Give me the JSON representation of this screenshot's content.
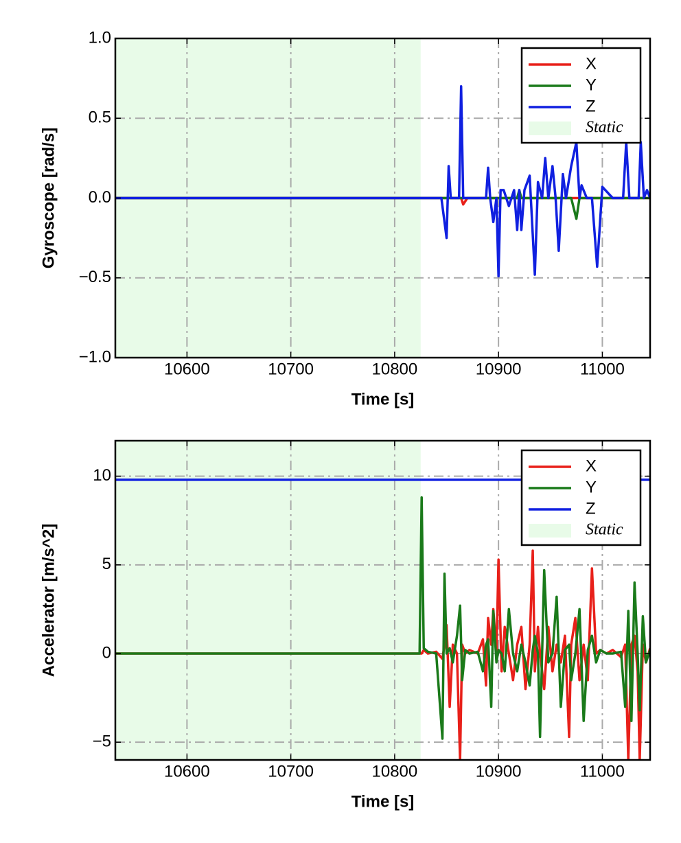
{
  "chart_data": [
    {
      "type": "line",
      "xlabel": "Time [s]",
      "ylabel": "Gyroscope [rad/s]",
      "xlim": [
        10531,
        11046
      ],
      "ylim": [
        -1,
        1
      ],
      "xticks": [
        10600,
        10700,
        10800,
        10900,
        11000
      ],
      "yticks": [
        {
          "value": -1,
          "label": "−1.0"
        },
        {
          "value": -0.5,
          "label": "−0.5"
        },
        {
          "value": 0,
          "label": "0.0"
        },
        0.5,
        {
          "value": 1,
          "label": "1.0"
        }
      ],
      "grid": true,
      "legend": "upper right",
      "shaded_region": {
        "x": [
          10531,
          10825
        ],
        "label": "Static",
        "color": "#e8fbe8"
      },
      "x": [
        10531,
        10600,
        10700,
        10800,
        10845,
        10850,
        10852,
        10854,
        10858,
        10862,
        10864,
        10866,
        10870,
        10880,
        10888,
        10890,
        10892,
        10895,
        10898,
        10900,
        10902,
        10905,
        10910,
        10915,
        10918,
        10920,
        10922,
        10925,
        10930,
        10935,
        10938,
        10942,
        10945,
        10948,
        10952,
        10955,
        10958,
        10962,
        10965,
        10970,
        10975,
        10978,
        10980,
        10985,
        10990,
        10995,
        11000,
        11010,
        11020,
        11023,
        11026,
        11030,
        11035,
        11037,
        11040,
        11043,
        11046
      ],
      "series": [
        {
          "name": "X",
          "color": "#e8201a",
          "values": [
            0,
            0,
            0,
            0,
            0,
            0,
            0,
            0,
            0,
            0,
            0,
            -0.04,
            0,
            0,
            0,
            0,
            0,
            0,
            0,
            0,
            0,
            0,
            0,
            0,
            0,
            0,
            0,
            0,
            0,
            0,
            0,
            0,
            0,
            0,
            0,
            0,
            0,
            0,
            0,
            0,
            0,
            0,
            0,
            0,
            0,
            0,
            0,
            0,
            0,
            0,
            0,
            0,
            0,
            0,
            0,
            0,
            0
          ]
        },
        {
          "name": "Y",
          "color": "#1a7a1a",
          "values": [
            0,
            0,
            0,
            0,
            0,
            0,
            0,
            0,
            0,
            0,
            0,
            0,
            0,
            0,
            0,
            0,
            0,
            0,
            0,
            0,
            0,
            0,
            0,
            0,
            0,
            0.05,
            0,
            0,
            0,
            0,
            0,
            0,
            0,
            0,
            0,
            0,
            0,
            0,
            0,
            0,
            -0.13,
            0,
            0,
            0,
            0,
            0,
            0,
            0,
            0,
            0,
            0,
            0,
            0,
            0,
            0,
            0,
            0
          ]
        },
        {
          "name": "Z",
          "color": "#1020e0",
          "values": [
            0,
            0,
            0,
            0,
            0,
            -0.25,
            0.2,
            0,
            0,
            0,
            0.7,
            0,
            0,
            0,
            0,
            0.19,
            0,
            -0.15,
            0,
            -0.49,
            0.05,
            0.05,
            -0.05,
            0.05,
            -0.2,
            0.05,
            -0.2,
            0.05,
            0.14,
            -0.48,
            0.1,
            0,
            0.25,
            0,
            0.2,
            0,
            -0.33,
            0.15,
            0,
            0.2,
            0.35,
            0,
            0.08,
            0,
            0,
            -0.43,
            0.07,
            0,
            0,
            0.35,
            0,
            0,
            0,
            0.35,
            0,
            0.05,
            0
          ]
        }
      ]
    },
    {
      "type": "line",
      "xlabel": "Time [s]",
      "ylabel": "Accelerator [m/s^2]",
      "xlim": [
        10531,
        11046
      ],
      "ylim": [
        -6,
        12
      ],
      "xticks": [
        10600,
        10700,
        10800,
        10900,
        11000
      ],
      "yticks": [
        {
          "value": -5,
          "label": "−5"
        },
        0,
        5,
        10
      ],
      "grid": true,
      "legend": "upper right",
      "shaded_region": {
        "x": [
          10531,
          10825
        ],
        "label": "Static",
        "color": "#e8fbe8"
      },
      "x": [
        10531,
        10600,
        10700,
        10800,
        10824,
        10826,
        10828,
        10832,
        10840,
        10846,
        10848,
        10850,
        10853,
        10856,
        10860,
        10863,
        10865,
        10868,
        10872,
        10880,
        10885,
        10888,
        10890,
        10893,
        10895,
        10898,
        10900,
        10903,
        10906,
        10910,
        10914,
        10918,
        10922,
        10926,
        10930,
        10933,
        10935,
        10938,
        10940,
        10944,
        10948,
        10952,
        10956,
        10960,
        10964,
        10968,
        10970,
        10974,
        10978,
        10982,
        10986,
        10990,
        10994,
        10998,
        11004,
        11010,
        11018,
        11022,
        11025,
        11028,
        11031,
        11034,
        11036,
        11039,
        11042,
        11046
      ],
      "series": [
        {
          "name": "X",
          "color": "#e8201a",
          "values": [
            0,
            0,
            0,
            0,
            0,
            0,
            0.2,
            0,
            0.1,
            -0.3,
            0.5,
            1.6,
            -3.0,
            0.5,
            0,
            -6.0,
            0.5,
            0,
            0.2,
            0,
            0.8,
            -1.8,
            2.0,
            0.5,
            2.5,
            0,
            5.3,
            -1.0,
            1.5,
            0,
            -1.5,
            0.5,
            1.5,
            -2.0,
            0.5,
            5.8,
            -1.0,
            1.5,
            0,
            -2.0,
            1.5,
            -1.0,
            0.5,
            -0.5,
            1.0,
            -4.7,
            0.5,
            2.0,
            -1.5,
            0.5,
            -1.5,
            4.8,
            0,
            0.2,
            0,
            0.2,
            -0.2,
            0.5,
            -6.0,
            0.5,
            1.0,
            -1.0,
            -6.0,
            0.5,
            -0.5,
            0.3
          ]
        },
        {
          "name": "Y",
          "color": "#1a7a1a",
          "values": [
            0,
            0,
            0,
            0,
            0,
            8.8,
            0.3,
            0.1,
            0,
            -4.8,
            4.5,
            0,
            0.3,
            -0.5,
            1.0,
            2.7,
            -1.5,
            0.2,
            0,
            0.1,
            -1.0,
            0.5,
            0.8,
            -3.0,
            2.4,
            -0.5,
            0.2,
            0,
            -1.0,
            2.5,
            0,
            -1.0,
            0.5,
            -0.5,
            -1.8,
            0.2,
            1.0,
            0,
            -4.7,
            4.7,
            -0.5,
            0,
            3.2,
            -3.0,
            0.2,
            0.5,
            -1.5,
            0,
            2.5,
            -3.8,
            0.2,
            1.0,
            -0.5,
            0.2,
            0,
            0,
            0.1,
            -3.0,
            2.4,
            -3.8,
            4.0,
            0,
            -3.2,
            2.1,
            -0.5,
            0.2
          ]
        },
        {
          "name": "Z",
          "color": "#1020e0",
          "values": [
            9.8,
            9.8,
            9.8,
            9.8,
            9.8,
            9.8,
            9.8,
            9.8,
            9.8,
            9.8,
            9.8,
            9.8,
            9.8,
            9.8,
            9.8,
            9.8,
            9.8,
            9.8,
            9.8,
            9.8,
            9.8,
            9.8,
            9.8,
            9.8,
            9.8,
            9.8,
            9.8,
            9.8,
            9.8,
            9.8,
            9.8,
            9.8,
            9.8,
            9.8,
            9.8,
            9.8,
            9.8,
            9.8,
            9.8,
            9.8,
            9.8,
            9.8,
            9.8,
            9.8,
            9.8,
            9.8,
            9.8,
            9.8,
            9.8,
            9.8,
            9.8,
            9.8,
            9.8,
            9.8,
            9.8,
            9.8,
            9.8,
            9.8,
            9.8,
            9.8,
            9.8,
            9.8,
            9.8,
            9.8,
            9.8,
            9.8
          ]
        }
      ]
    }
  ]
}
